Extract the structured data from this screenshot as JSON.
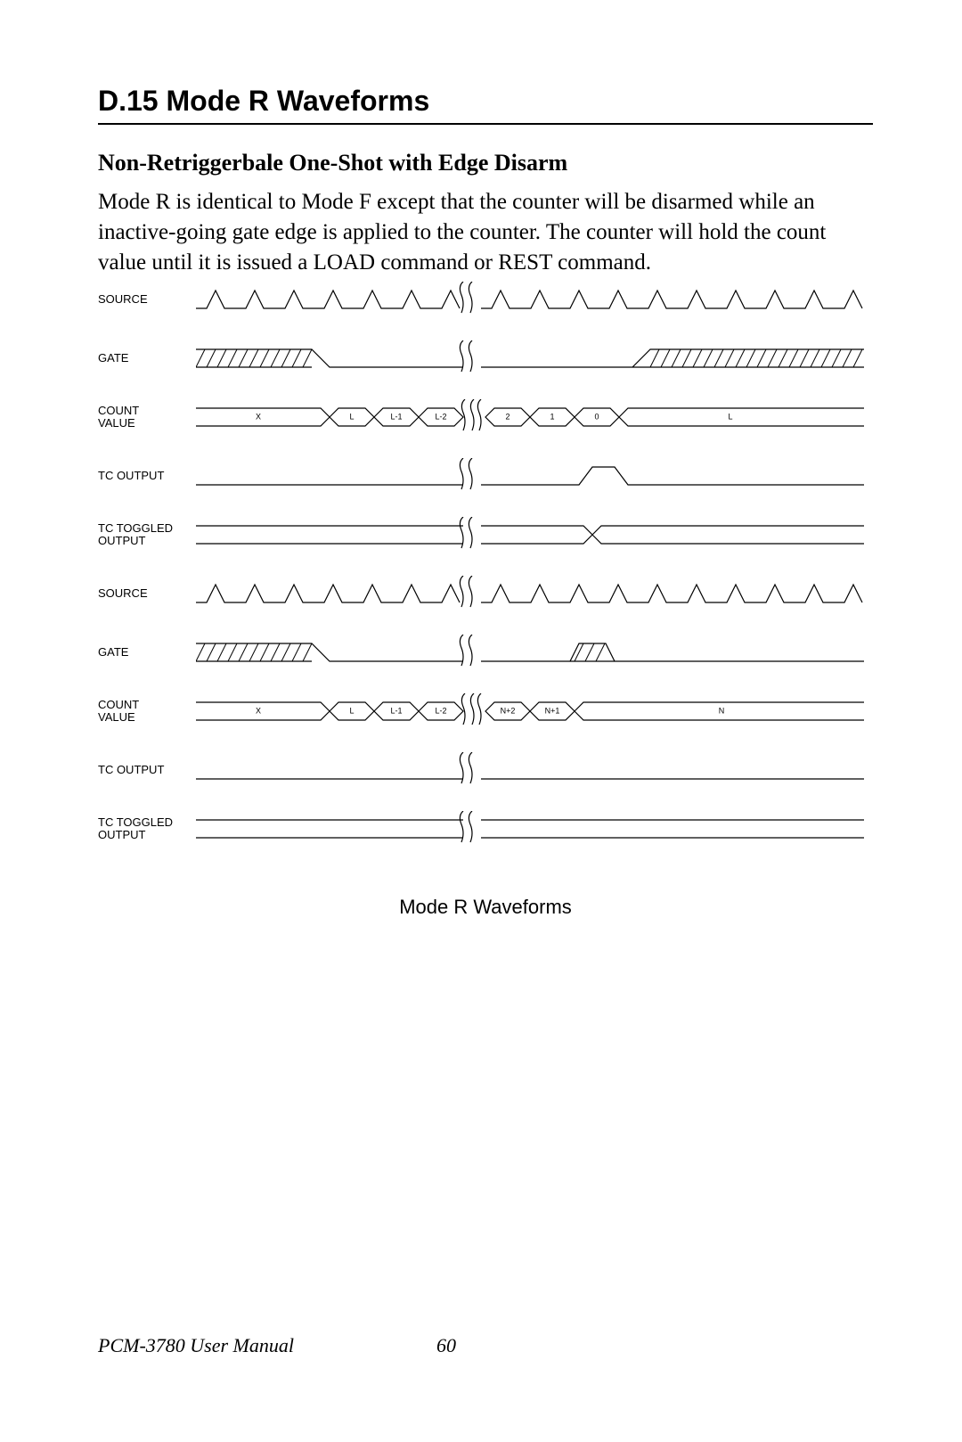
{
  "heading": "D.15  Mode R Waveforms",
  "subheading": "Non-Retriggerbale One-Shot with Edge Disarm",
  "paragraph": "Mode R is identical to Mode F except that the counter will be disarmed while an inactive-going gate edge is applied to the counter. The counter will hold the count value until it is issued a LOAD command or REST command.",
  "caption": "Mode R Waveforms",
  "footer_manual": "PCM-3780 User Manual",
  "footer_page": "60",
  "stroke": "#000000",
  "stroke_width": 1.2,
  "labels": {
    "source": "SOURCE",
    "gate": "GATE",
    "count": "COUNT\nVALUE",
    "tcout": "TC OUTPUT",
    "tctog": "TC TOGGLED\nOUTPUT"
  },
  "diagram1": {
    "count_values": [
      "X",
      "L",
      "L-1",
      "L-2",
      "2",
      "1",
      "0",
      "L"
    ]
  },
  "diagram2": {
    "count_values": [
      "X",
      "L",
      "L-1",
      "L-2",
      "N+2",
      "N+1",
      "N"
    ]
  }
}
